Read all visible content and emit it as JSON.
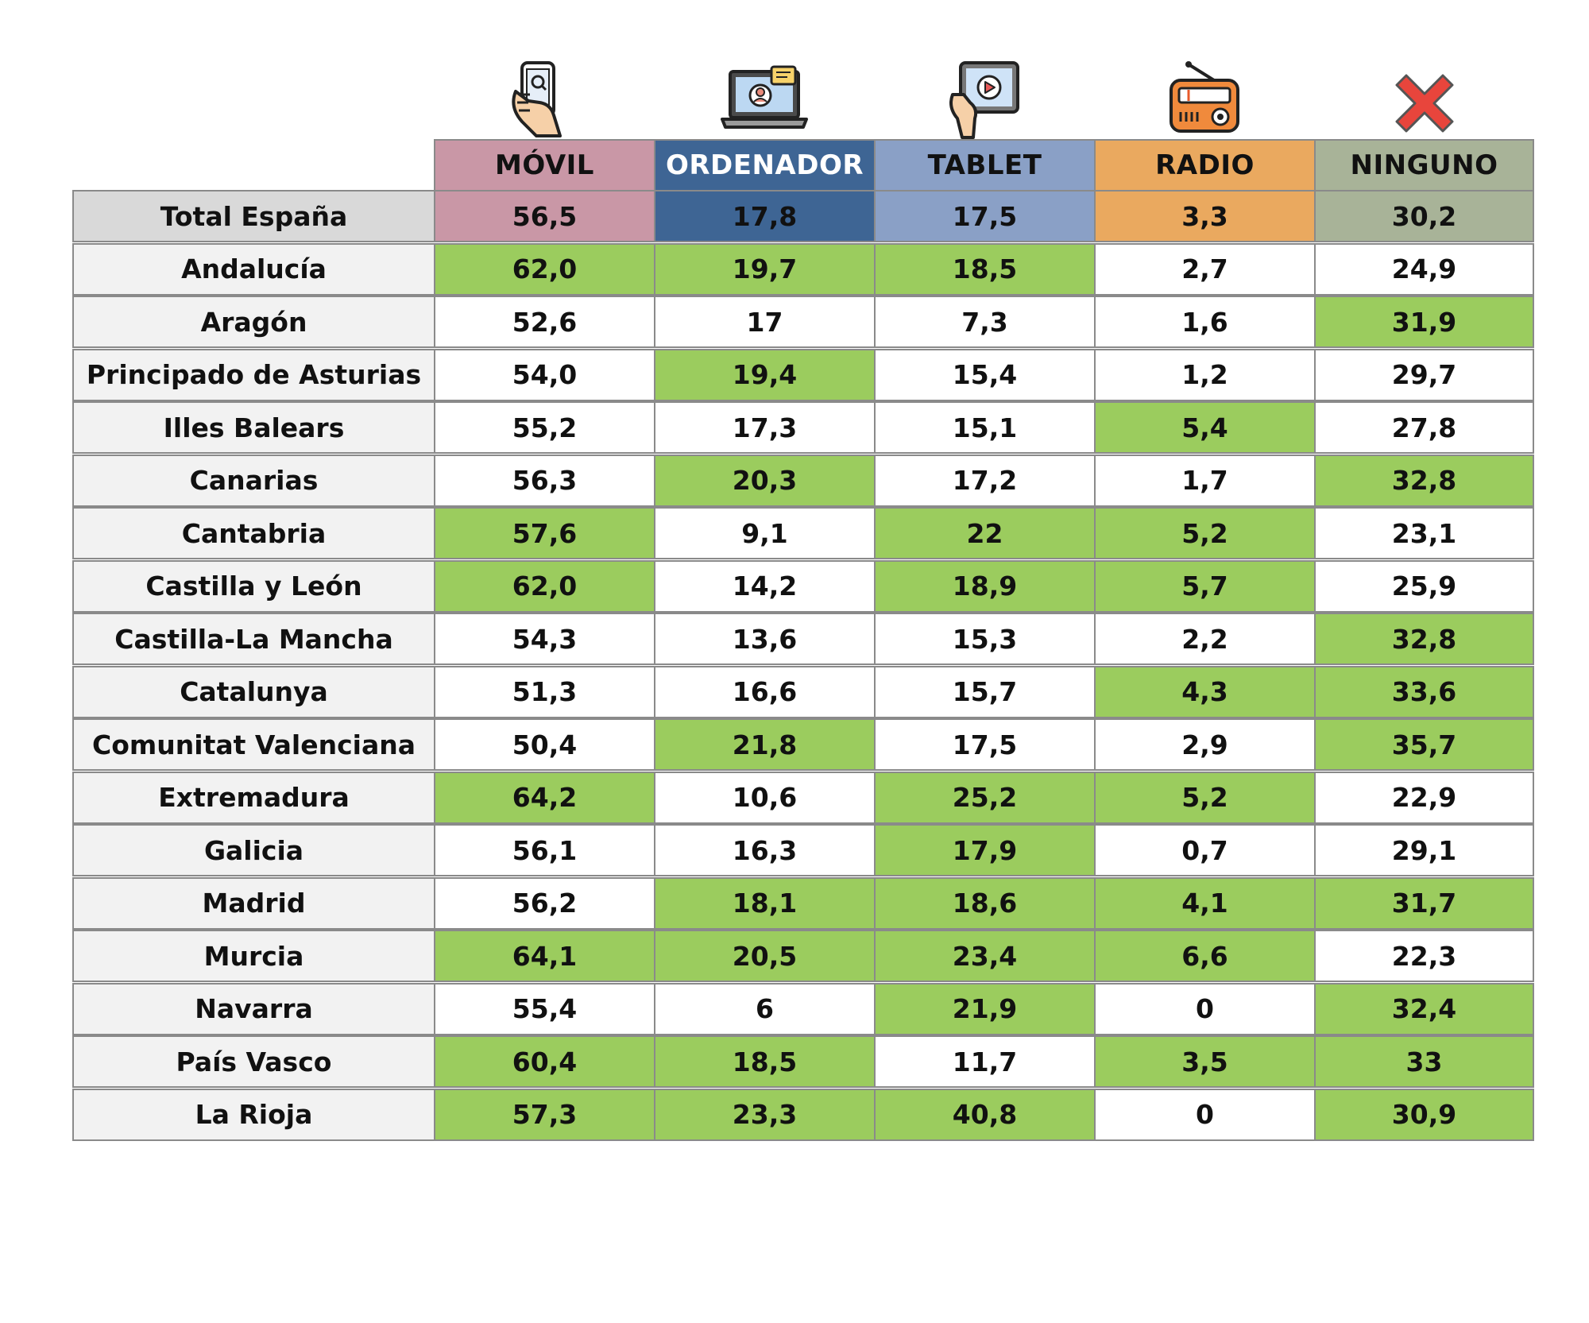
{
  "colors": {
    "movil": "#c997a6",
    "ordenador": "#3e6594",
    "tablet": "#8aa0c6",
    "radio": "#eaa95f",
    "ninguno": "#a8b398",
    "highlight": "#9bcc5e",
    "label_bg": "#f2f2f2",
    "total_label_bg": "#d9d9d9"
  },
  "icons": [
    "smartphone-hand-icon",
    "laptop-video-call-icon",
    "tablet-play-icon",
    "radio-icon",
    "red-x-icon"
  ],
  "headers": [
    "MÓVIL",
    "ORDENADOR",
    "TABLET",
    "RADIO",
    "NINGUNO"
  ],
  "total": {
    "label": "Total España",
    "values": [
      "56,5",
      "17,8",
      "17,5",
      "3,3",
      "30,2"
    ]
  },
  "rows": [
    {
      "label": "Andalucía",
      "values": [
        "62,0",
        "19,7",
        "18,5",
        "2,7",
        "24,9"
      ],
      "highlight": [
        true,
        true,
        true,
        false,
        false
      ]
    },
    {
      "label": "Aragón",
      "values": [
        "52,6",
        "17",
        "7,3",
        "1,6",
        "31,9"
      ],
      "highlight": [
        false,
        false,
        false,
        false,
        true
      ]
    },
    {
      "label": "Principado de Asturias",
      "values": [
        "54,0",
        "19,4",
        "15,4",
        "1,2",
        "29,7"
      ],
      "highlight": [
        false,
        true,
        false,
        false,
        false
      ]
    },
    {
      "label": "Illes Balears",
      "values": [
        "55,2",
        "17,3",
        "15,1",
        "5,4",
        "27,8"
      ],
      "highlight": [
        false,
        false,
        false,
        true,
        false
      ]
    },
    {
      "label": "Canarias",
      "values": [
        "56,3",
        "20,3",
        "17,2",
        "1,7",
        "32,8"
      ],
      "highlight": [
        false,
        true,
        false,
        false,
        true
      ]
    },
    {
      "label": "Cantabria",
      "values": [
        "57,6",
        "9,1",
        "22",
        "5,2",
        "23,1"
      ],
      "highlight": [
        true,
        false,
        true,
        true,
        false
      ]
    },
    {
      "label": "Castilla y León",
      "values": [
        "62,0",
        "14,2",
        "18,9",
        "5,7",
        "25,9"
      ],
      "highlight": [
        true,
        false,
        true,
        true,
        false
      ]
    },
    {
      "label": "Castilla-La Mancha",
      "values": [
        "54,3",
        "13,6",
        "15,3",
        "2,2",
        "32,8"
      ],
      "highlight": [
        false,
        false,
        false,
        false,
        true
      ]
    },
    {
      "label": "Catalunya",
      "values": [
        "51,3",
        "16,6",
        "15,7",
        "4,3",
        "33,6"
      ],
      "highlight": [
        false,
        false,
        false,
        true,
        true
      ]
    },
    {
      "label": "Comunitat Valenciana",
      "values": [
        "50,4",
        "21,8",
        "17,5",
        "2,9",
        "35,7"
      ],
      "highlight": [
        false,
        true,
        false,
        false,
        true
      ]
    },
    {
      "label": "Extremadura",
      "values": [
        "64,2",
        "10,6",
        "25,2",
        "5,2",
        "22,9"
      ],
      "highlight": [
        true,
        false,
        true,
        true,
        false
      ]
    },
    {
      "label": "Galicia",
      "values": [
        "56,1",
        "16,3",
        "17,9",
        "0,7",
        "29,1"
      ],
      "highlight": [
        false,
        false,
        true,
        false,
        false
      ]
    },
    {
      "label": "Madrid",
      "values": [
        "56,2",
        "18,1",
        "18,6",
        "4,1",
        "31,7"
      ],
      "highlight": [
        false,
        true,
        true,
        true,
        true
      ]
    },
    {
      "label": "Murcia",
      "values": [
        "64,1",
        "20,5",
        "23,4",
        "6,6",
        "22,3"
      ],
      "highlight": [
        true,
        true,
        true,
        true,
        false
      ]
    },
    {
      "label": "Navarra",
      "values": [
        "55,4",
        "6",
        "21,9",
        "0",
        "32,4"
      ],
      "highlight": [
        false,
        false,
        true,
        false,
        true
      ]
    },
    {
      "label": "País Vasco",
      "values": [
        "60,4",
        "18,5",
        "11,7",
        "3,5",
        "33"
      ],
      "highlight": [
        true,
        true,
        false,
        true,
        true
      ]
    },
    {
      "label": "La Rioja",
      "values": [
        "57,3",
        "23,3",
        "40,8",
        "0",
        "30,9"
      ],
      "highlight": [
        true,
        true,
        true,
        false,
        true
      ]
    }
  ]
}
